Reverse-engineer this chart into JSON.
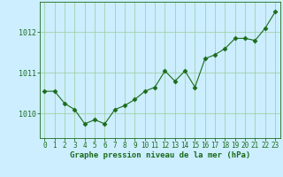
{
  "x": [
    0,
    1,
    2,
    3,
    4,
    5,
    6,
    7,
    8,
    9,
    10,
    11,
    12,
    13,
    14,
    15,
    16,
    17,
    18,
    19,
    20,
    21,
    22,
    23
  ],
  "y": [
    1010.55,
    1010.55,
    1010.25,
    1010.1,
    1009.75,
    1009.85,
    1009.75,
    1010.1,
    1010.2,
    1010.35,
    1010.55,
    1010.65,
    1011.05,
    1010.8,
    1011.05,
    1010.65,
    1011.35,
    1011.45,
    1011.6,
    1011.85,
    1011.85,
    1011.8,
    1012.1,
    1012.5
  ],
  "line_color": "#1a6b1a",
  "marker": "D",
  "marker_size": 2.5,
  "bg_color": "#cceeff",
  "grid_color": "#99cc99",
  "xlabel": "Graphe pression niveau de la mer (hPa)",
  "xlabel_color": "#1a6b1a",
  "tick_color": "#1a6b1a",
  "ylim": [
    1009.4,
    1012.75
  ],
  "yticks": [
    1010,
    1011,
    1012
  ],
  "xlim": [
    -0.5,
    23.5
  ],
  "xticks": [
    0,
    1,
    2,
    3,
    4,
    5,
    6,
    7,
    8,
    9,
    10,
    11,
    12,
    13,
    14,
    15,
    16,
    17,
    18,
    19,
    20,
    21,
    22,
    23
  ],
  "spine_color": "#1a6b1a",
  "tick_fontsize": 5.5,
  "xlabel_fontsize": 6.5
}
